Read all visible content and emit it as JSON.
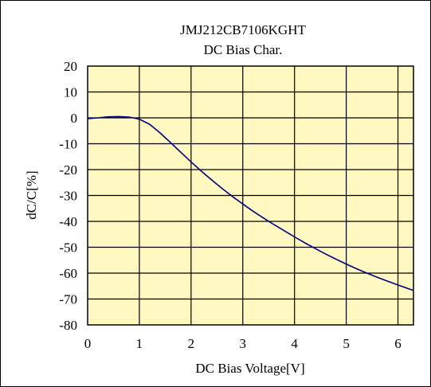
{
  "chart_data": {
    "type": "line",
    "title": "JMJ212CB7106KGHT",
    "subtitle": "DC Bias Char.",
    "xlabel": "DC Bias Voltage[V]",
    "ylabel": "dC/C[%]",
    "xlim": [
      0,
      6.3
    ],
    "ylim": [
      -80,
      20
    ],
    "x_ticks": [
      0,
      1,
      2,
      3,
      4,
      5,
      6
    ],
    "x_tick_labels": [
      "0",
      "1",
      "2",
      "3",
      "4",
      "5",
      "6"
    ],
    "y_ticks": [
      20,
      10,
      0,
      -10,
      -20,
      -30,
      -40,
      -50,
      -60,
      -70,
      -80
    ],
    "y_tick_labels": [
      "20",
      "10",
      "0",
      "-10",
      "-20",
      "-30",
      "-40",
      "-50",
      "-60",
      "-70",
      "-80"
    ],
    "grid": true,
    "plot_background": "#fff8c0",
    "series": [
      {
        "color": "#00007f",
        "x": [
          0,
          0.2,
          0.4,
          0.6,
          0.8,
          1.0,
          1.2,
          1.4,
          1.6,
          1.8,
          2.0,
          2.2,
          2.4,
          2.6,
          2.8,
          3.0,
          3.2,
          3.4,
          3.6,
          3.8,
          4.0,
          4.2,
          4.4,
          4.6,
          4.8,
          5.0,
          5.2,
          5.4,
          5.6,
          5.8,
          6.0,
          6.2,
          6.3
        ],
        "y": [
          -0.3,
          0,
          0.4,
          0.5,
          0.3,
          -0.5,
          -2.5,
          -5.8,
          -9.5,
          -13.3,
          -17.0,
          -20.6,
          -24.0,
          -27.3,
          -30.4,
          -33.3,
          -36.1,
          -38.7,
          -41.2,
          -43.6,
          -46.0,
          -48.3,
          -50.5,
          -52.6,
          -54.6,
          -56.5,
          -58.3,
          -60.0,
          -61.6,
          -63.1,
          -64.6,
          -66.0,
          -66.7
        ]
      }
    ]
  }
}
